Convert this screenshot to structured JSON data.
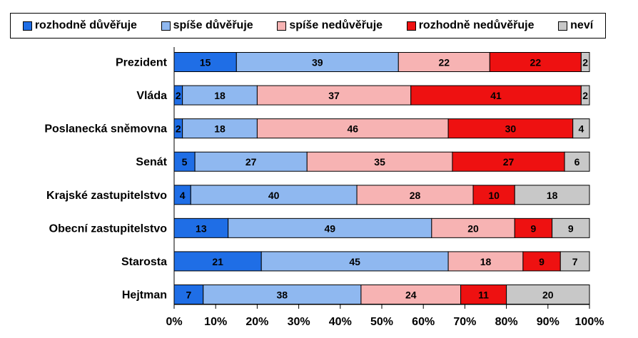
{
  "chart_data": {
    "type": "bar",
    "orientation": "horizontal",
    "stacked": "percent",
    "categories": [
      "Prezident",
      "Vláda",
      "Poslanecká sněmovna",
      "Senát",
      "Krajské zastupitelstvo",
      "Obecní zastupitelstvo",
      "Starosta",
      "Hejtman"
    ],
    "series": [
      {
        "name": "rozhodně důvěřuje",
        "color": "#1f6ee6",
        "values": [
          15,
          2,
          2,
          5,
          4,
          13,
          21,
          7
        ]
      },
      {
        "name": "spíše důvěřuje",
        "color": "#8fb8f0",
        "values": [
          39,
          18,
          18,
          27,
          40,
          49,
          45,
          38
        ]
      },
      {
        "name": "spíše nedůvěřuje",
        "color": "#f7b3b3",
        "values": [
          22,
          37,
          46,
          35,
          28,
          20,
          18,
          24
        ]
      },
      {
        "name": "rozhodně nedůvěřuje",
        "color": "#ee1111",
        "values": [
          22,
          41,
          30,
          27,
          10,
          9,
          9,
          11
        ]
      },
      {
        "name": "neví",
        "color": "#c8c8c8",
        "values": [
          2,
          2,
          4,
          6,
          18,
          9,
          7,
          20
        ]
      }
    ],
    "xlim": [
      0,
      100
    ],
    "xticks": [
      "0%",
      "10%",
      "20%",
      "30%",
      "40%",
      "50%",
      "60%",
      "70%",
      "80%",
      "90%",
      "100%"
    ],
    "legend_position": "top",
    "grid": false
  }
}
